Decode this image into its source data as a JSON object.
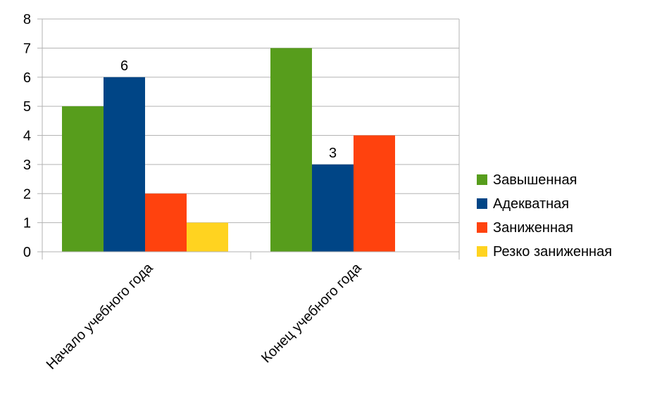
{
  "chart_data": {
    "type": "bar",
    "categories": [
      "Начало учебного года",
      "Конец учебного года"
    ],
    "series": [
      {
        "name": "Завышенная",
        "values": [
          5,
          7
        ],
        "color": "#579d1c"
      },
      {
        "name": "Адекватная",
        "values": [
          6,
          3
        ],
        "color": "#004586"
      },
      {
        "name": "Заниженная",
        "values": [
          2,
          4
        ],
        "color": "#ff420e"
      },
      {
        "name": "Резко заниженная",
        "values": [
          1,
          0
        ],
        "color": "#ffd320"
      }
    ],
    "data_labels": [
      {
        "series": 1,
        "category": 0,
        "text": "6"
      },
      {
        "series": 1,
        "category": 1,
        "text": "3"
      }
    ],
    "yticks": [
      "0",
      "1",
      "2",
      "3",
      "4",
      "5",
      "6",
      "7",
      "8"
    ],
    "ylim": [
      0,
      8
    ],
    "grid": true,
    "legend": "right"
  }
}
